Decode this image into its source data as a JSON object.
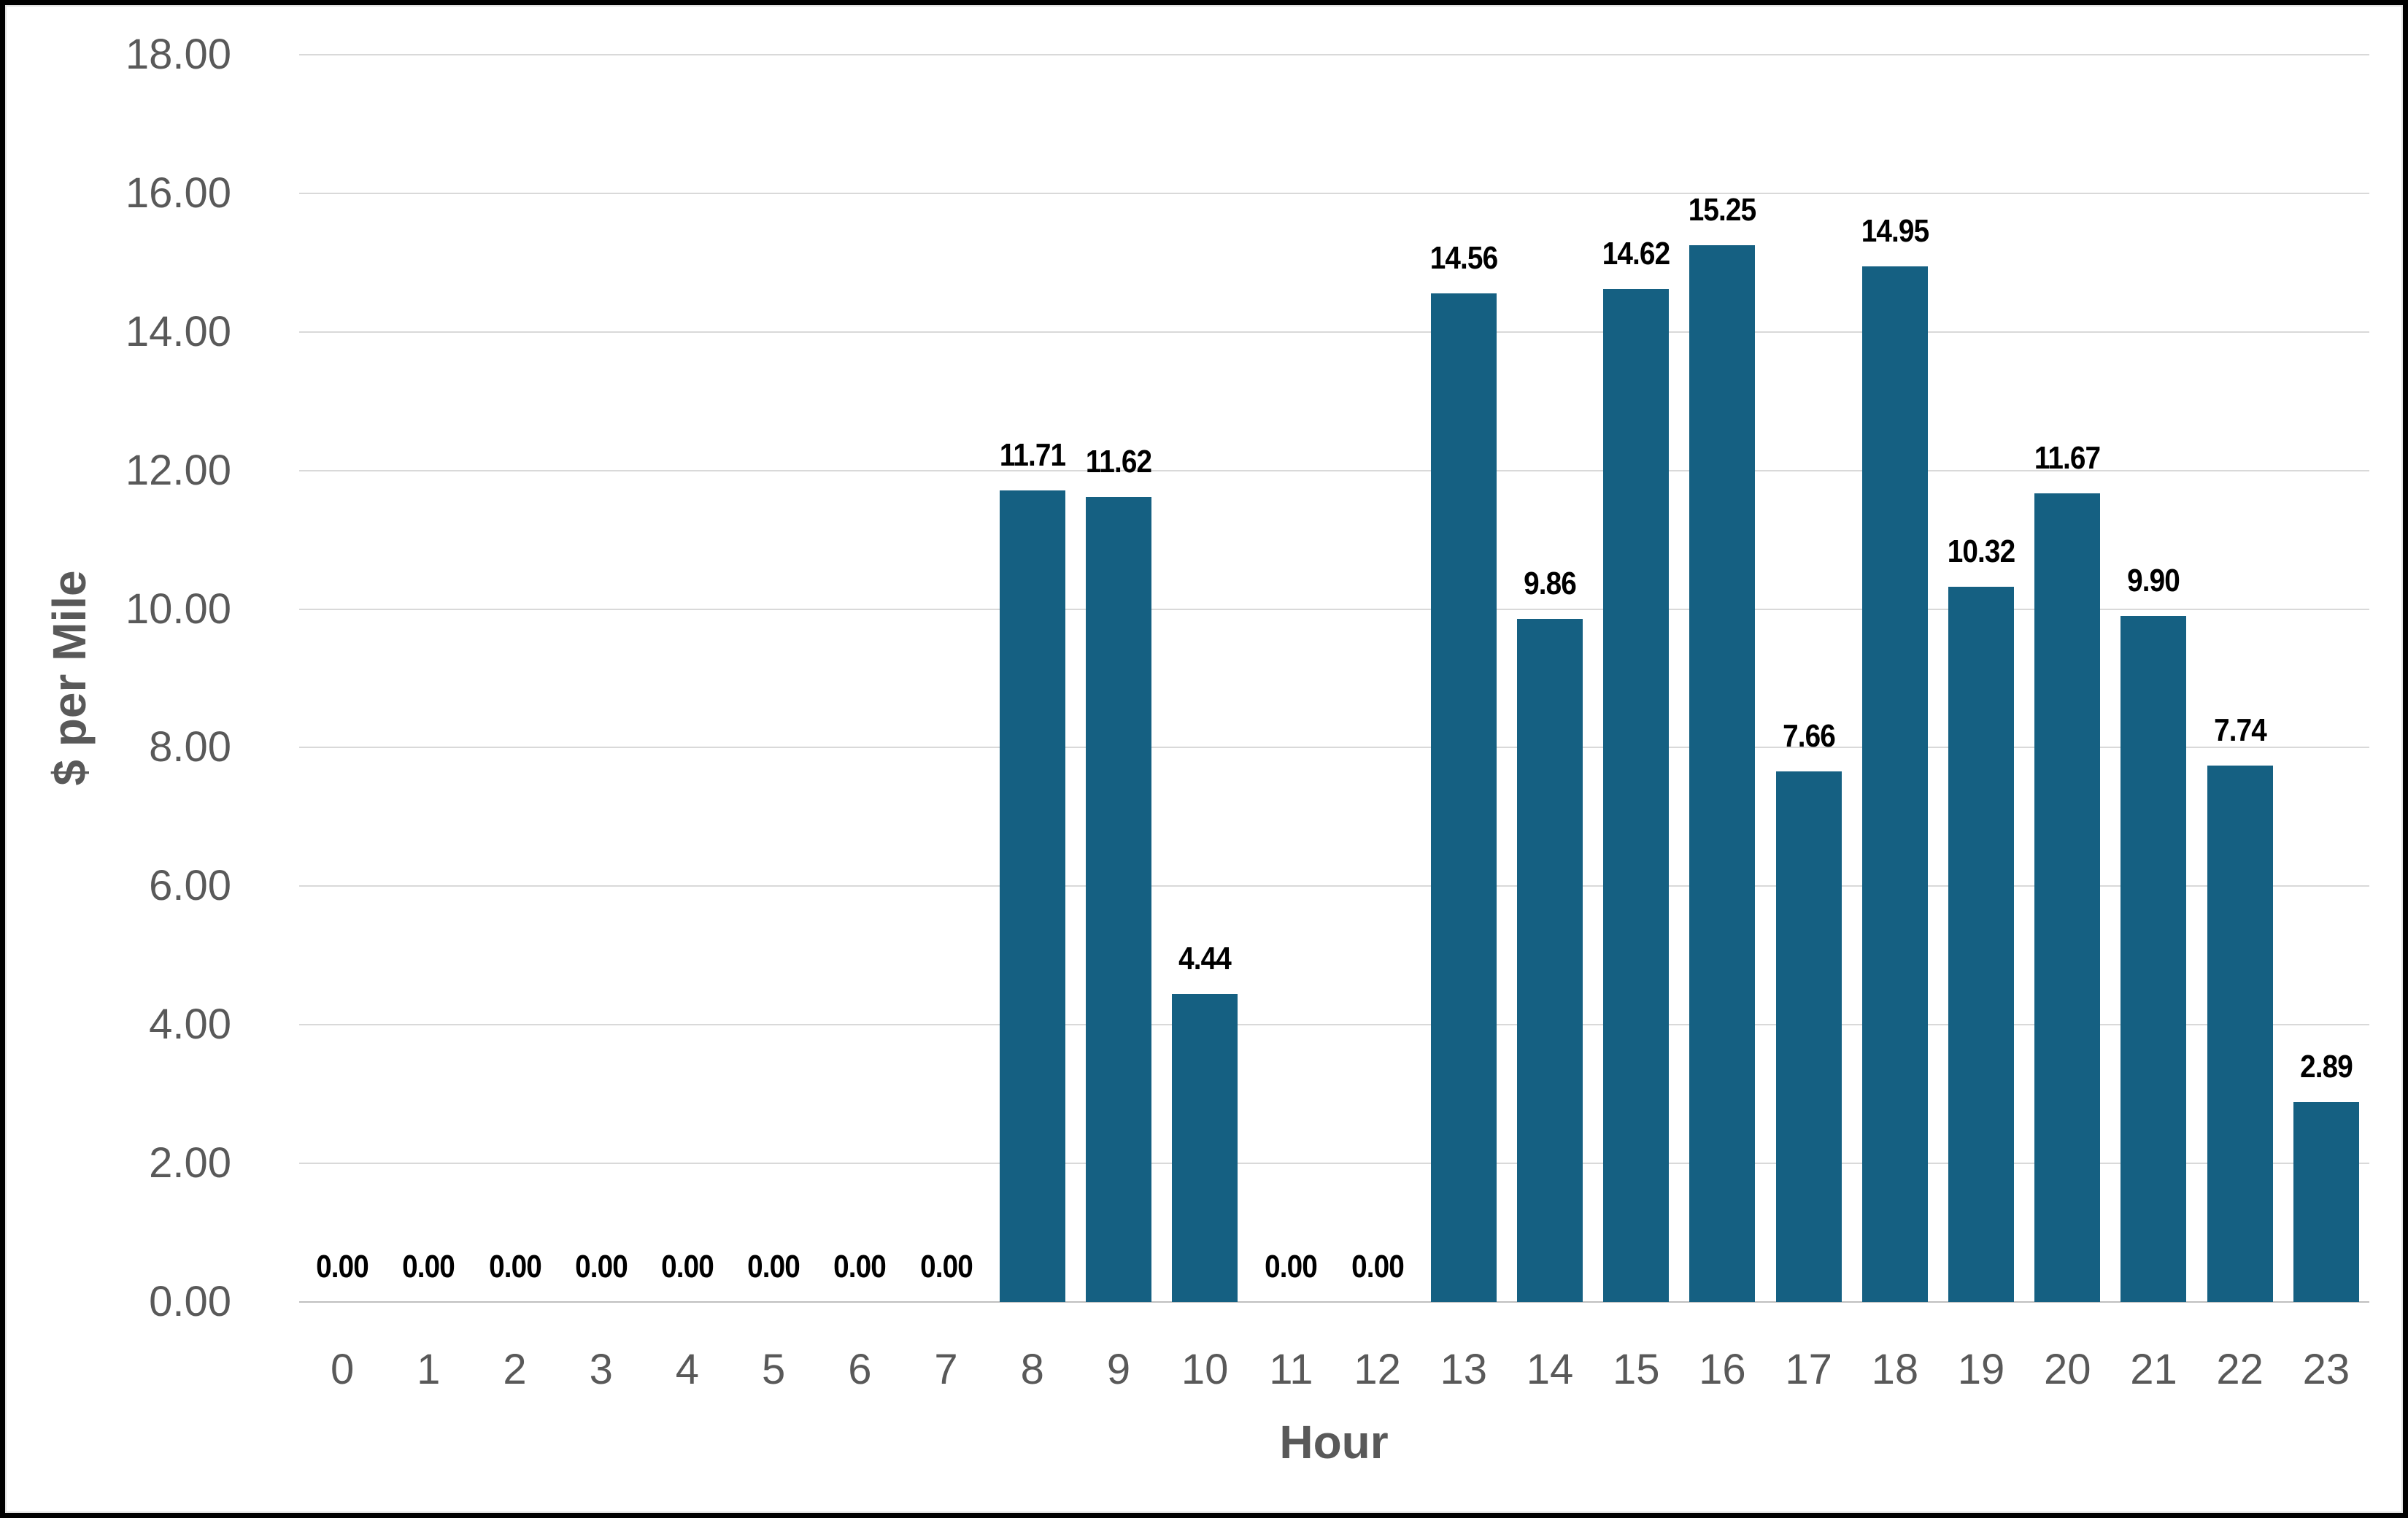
{
  "chart_data": {
    "type": "bar",
    "title": "",
    "xlabel": "Hour",
    "ylabel": "$ per Mile",
    "categories": [
      "0",
      "1",
      "2",
      "3",
      "4",
      "5",
      "6",
      "7",
      "8",
      "9",
      "10",
      "11",
      "12",
      "13",
      "14",
      "15",
      "16",
      "17",
      "18",
      "19",
      "20",
      "21",
      "22",
      "23"
    ],
    "values": [
      0,
      0,
      0,
      0,
      0,
      0,
      0,
      0,
      11.71,
      11.62,
      4.44,
      0,
      0,
      14.56,
      9.86,
      14.62,
      15.25,
      7.66,
      14.95,
      10.32,
      11.67,
      9.9,
      7.74,
      2.89
    ],
    "value_labels": [
      "0.00",
      "0.00",
      "0.00",
      "0.00",
      "0.00",
      "0.00",
      "0.00",
      "0.00",
      "11.71",
      "11.62",
      "4.44",
      "0.00",
      "0.00",
      "14.56",
      "9.86",
      "14.62",
      "15.25",
      "7.66",
      "14.95",
      "10.32",
      "11.67",
      "9.90",
      "7.74",
      "2.89"
    ],
    "yticks": [
      "0.00",
      "2.00",
      "4.00",
      "6.00",
      "8.00",
      "10.00",
      "12.00",
      "14.00",
      "16.00",
      "18.00"
    ],
    "ylim": [
      0,
      18
    ],
    "ytick_step": 2,
    "grid": true,
    "legend_visible": false,
    "colors": {
      "bar": "#156082",
      "data_label": "#000000",
      "axis_text": "#595959",
      "gridline": "#d9d9d9",
      "frame_border": "#000000",
      "background": "#ffffff"
    }
  }
}
